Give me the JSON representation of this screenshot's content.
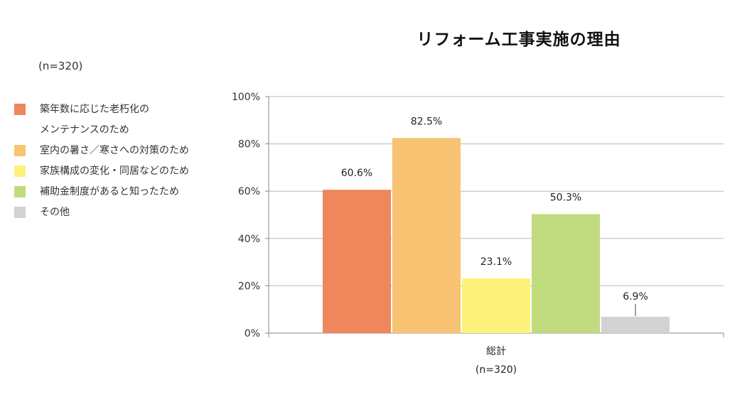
{
  "title": "リフォーム工事実施の理由",
  "sample_label": "(n=320)",
  "legend": [
    {
      "label_lines": [
        "築年数に応じた老朽化の",
        "メンテナンスのため"
      ],
      "color": "#ee875c"
    },
    {
      "label_lines": [
        "室内の暑さ／寒さへの対策のため"
      ],
      "color": "#f8c372"
    },
    {
      "label_lines": [
        "家族構成の変化・同居などのため"
      ],
      "color": "#fdf27a"
    },
    {
      "label_lines": [
        "補助金制度があると知ったため"
      ],
      "color": "#c1db7f"
    },
    {
      "label_lines": [
        "その他"
      ],
      "color": "#d3d1d1"
    }
  ],
  "chart_data": {
    "type": "bar",
    "categories": [
      "総計"
    ],
    "category_sub_label": "(n=320)",
    "series": [
      {
        "name": "築年数に応じた老朽化のメンテナンスのため",
        "values": [
          60.6
        ],
        "label": "60.6%",
        "color": "#ee875c"
      },
      {
        "name": "室内の暑さ／寒さへの対策のため",
        "values": [
          82.5
        ],
        "label": "82.5%",
        "color": "#f8c372"
      },
      {
        "name": "家族構成の変化・同居などのため",
        "values": [
          23.1
        ],
        "label": "23.1%",
        "color": "#fdf27a"
      },
      {
        "name": "補助金制度があると知ったため",
        "values": [
          50.3
        ],
        "label": "50.3%",
        "color": "#c1db7f"
      },
      {
        "name": "その他",
        "values": [
          6.9
        ],
        "label": "6.9%",
        "color": "#d3d1d1"
      }
    ],
    "ylim": [
      0,
      100
    ],
    "yticks": [
      "0%",
      "20%",
      "40%",
      "60%",
      "80%",
      "100%"
    ],
    "ytick_values": [
      0,
      20,
      40,
      60,
      80,
      100
    ],
    "grid": true,
    "legend_position": "left"
  }
}
